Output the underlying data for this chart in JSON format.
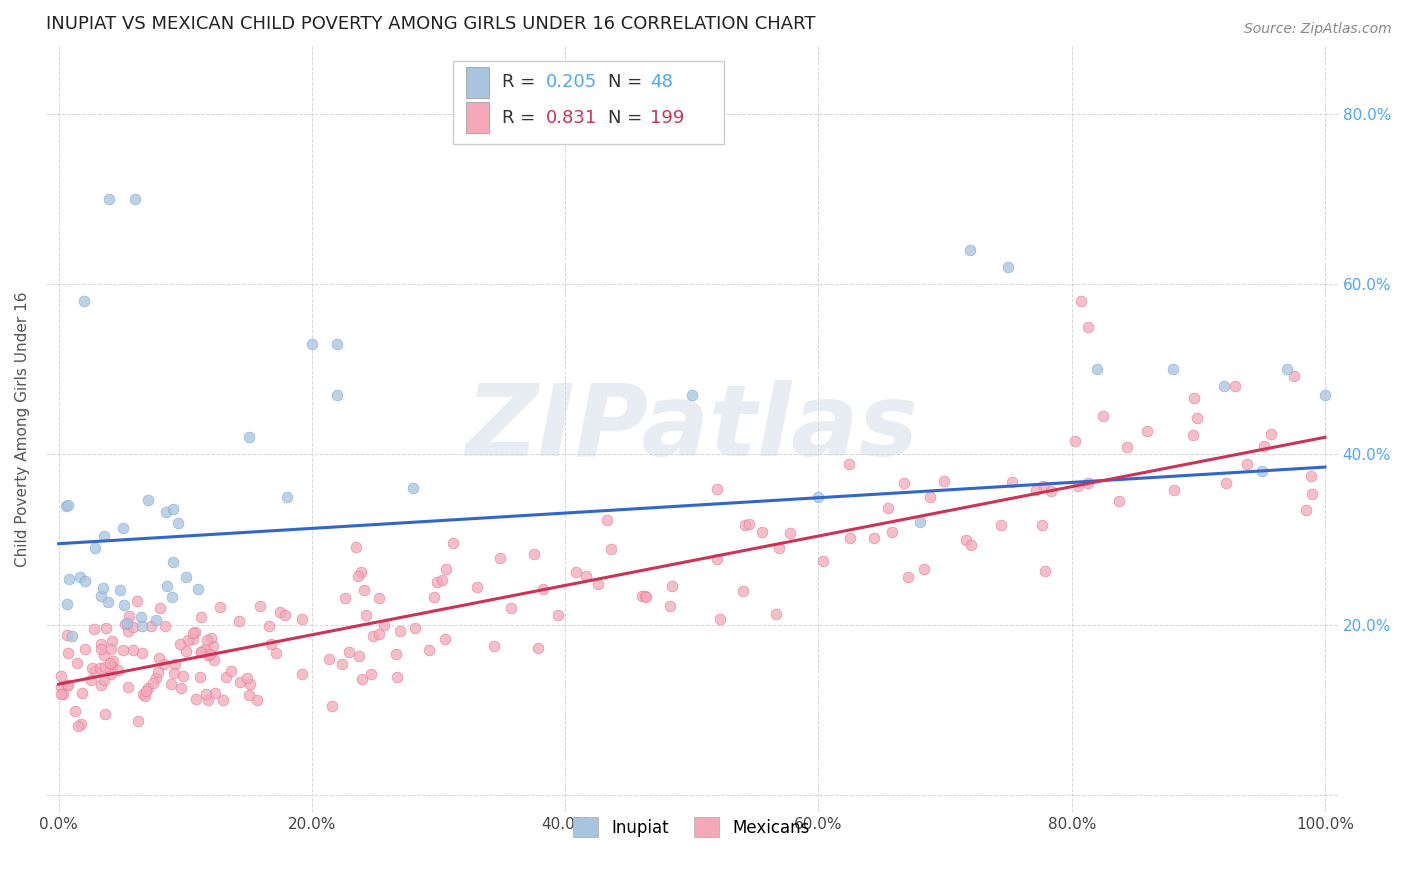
{
  "title": "INUPIAT VS MEXICAN CHILD POVERTY AMONG GIRLS UNDER 16 CORRELATION CHART",
  "source": "Source: ZipAtlas.com",
  "ylabel": "Child Poverty Among Girls Under 16",
  "watermark": "ZIPatlas",
  "inupiat_R": 0.205,
  "inupiat_N": 48,
  "mexican_R": 0.831,
  "mexican_N": 199,
  "xlim": [
    -0.01,
    1.01
  ],
  "ylim": [
    -0.02,
    0.88
  ],
  "xticks": [
    0.0,
    0.2,
    0.4,
    0.6,
    0.8,
    1.0
  ],
  "xticklabels": [
    "0.0%",
    "20.0%",
    "40.0%",
    "60.0%",
    "80.0%",
    "100.0%"
  ],
  "yticks": [
    0.0,
    0.2,
    0.4,
    0.6,
    0.8
  ],
  "right_yticklabels": [
    "",
    "20.0%",
    "40.0%",
    "60.0%",
    "80.0%"
  ],
  "inupiat_color": "#a8c4e0",
  "inupiat_edge_color": "#7aaace",
  "mexican_color": "#f4a8b8",
  "mexican_edge_color": "#e07898",
  "inupiat_line_color": "#3366cc",
  "mexican_line_color": "#cc3355",
  "background_color": "#ffffff",
  "grid_color": "#cccccc",
  "title_fontsize": 13,
  "axis_label_fontsize": 11,
  "tick_fontsize": 11,
  "legend_fontsize": 13,
  "right_ytick_color": "#4da6ff",
  "inupiat_line_y0": 0.295,
  "inupiat_line_y1": 0.385,
  "mexican_line_y0": 0.13,
  "mexican_line_y1": 0.42,
  "seed": 77
}
